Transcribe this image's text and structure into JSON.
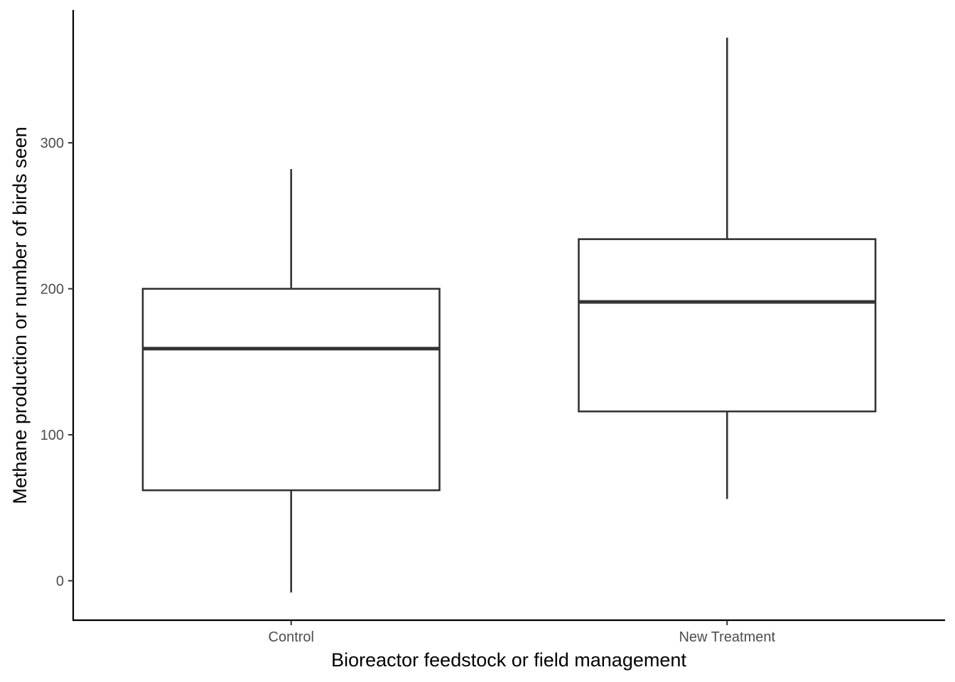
{
  "chart_data": {
    "type": "box",
    "title": "",
    "xlabel": "Bioreactor feedstock or field management",
    "ylabel": "Methane production or number of birds seen",
    "ylim": [
      -27,
      391
    ],
    "y_ticks": [
      0,
      100,
      200,
      300
    ],
    "y_tick_labels": [
      "0",
      "100",
      "200",
      "300"
    ],
    "grid": false,
    "legend": "none",
    "colors": {
      "box_stroke": "#333333",
      "box_fill": "#ffffff",
      "axis": "#000000",
      "tick_label": "#4d4d4d"
    },
    "categories": [
      "Control",
      "New Treatment"
    ],
    "boxes": [
      {
        "category": "Control",
        "lower_whisker": -8,
        "q1": 62,
        "median": 159,
        "q3": 200,
        "upper_whisker": 282
      },
      {
        "category": "New Treatment",
        "lower_whisker": 56,
        "q1": 116,
        "median": 191,
        "q3": 234,
        "upper_whisker": 372
      }
    ]
  }
}
